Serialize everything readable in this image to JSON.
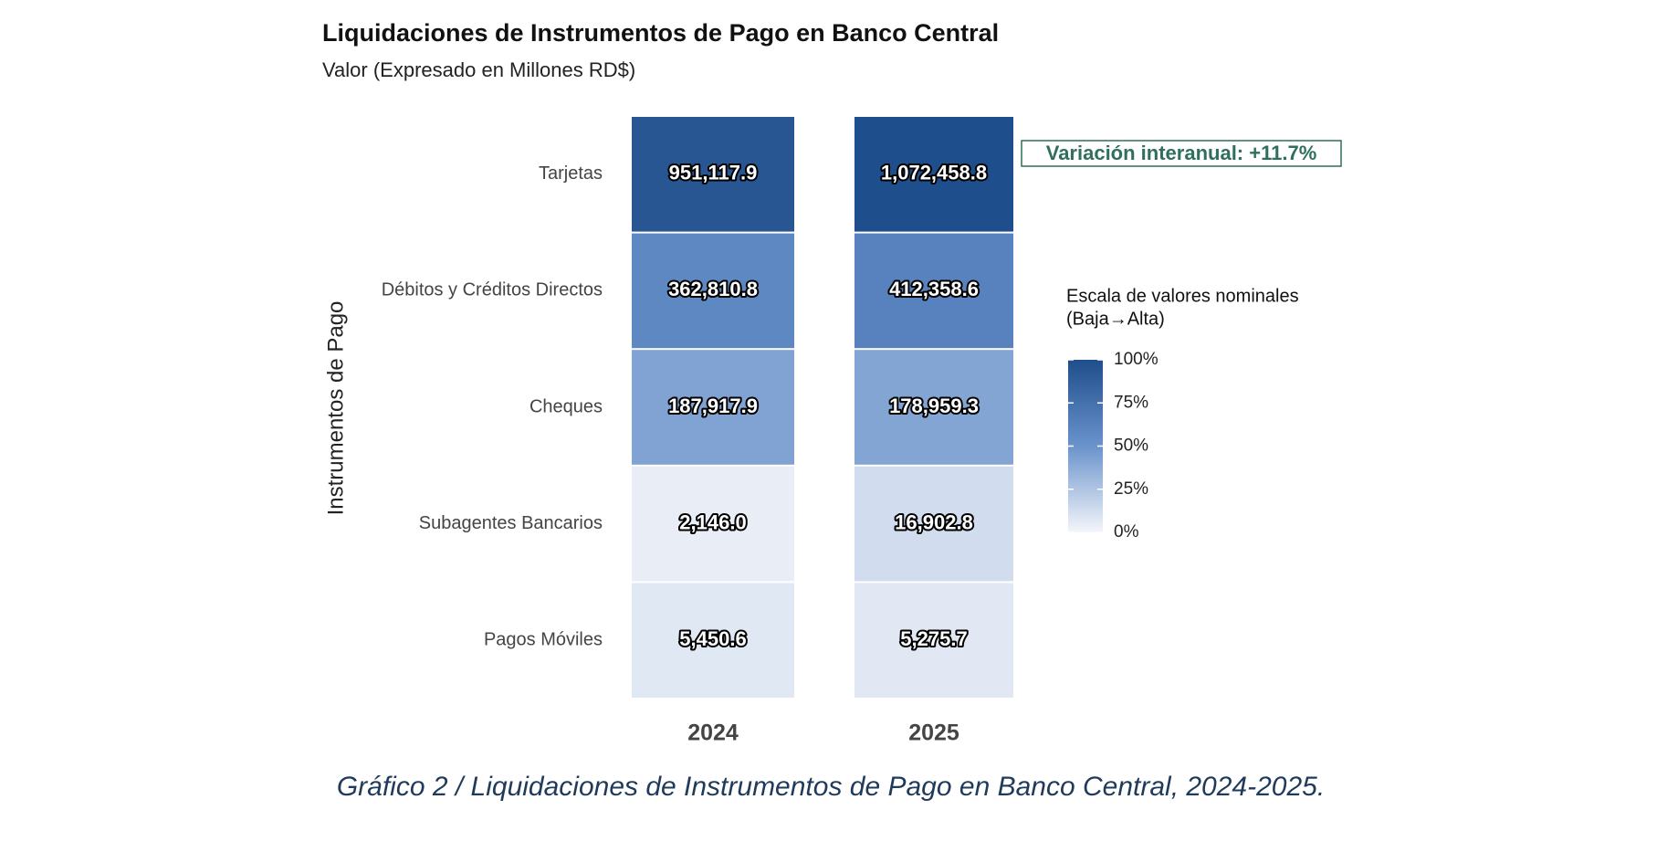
{
  "chart_data": {
    "type": "heatmap",
    "title": "Liquidaciones de Instrumentos de Pago en Banco Central",
    "subtitle": "Valor (Expresado en Millones RD$)",
    "y_label": "Instrumentos de Pago",
    "x": [
      "2024",
      "2025"
    ],
    "categories": [
      "Tarjetas",
      "Débitos y Créditos Directos",
      "Cheques",
      "Subagentes Bancarios",
      "Pagos Móviles"
    ],
    "series": [
      {
        "name": "2024",
        "values": [
          951117.9,
          362810.8,
          187917.9,
          2146.0,
          5450.6
        ],
        "value_labels": [
          "951,117.9",
          "362,810.8",
          "187,917.9",
          "2,146.0",
          "5,450.6"
        ]
      },
      {
        "name": "2025",
        "values": [
          1072458.8,
          412358.6,
          178959.3,
          16902.8,
          5275.7
        ],
        "value_labels": [
          "1,072,458.8",
          "412,358.6",
          "178,959.3",
          "16,902.8",
          "5,275.7"
        ]
      }
    ],
    "color_scale": "sqrt",
    "colorbar": {
      "title": [
        "Escala de valores nominales",
        "(Baja→Alta)"
      ],
      "lim": [
        0,
        100
      ],
      "ticks": [
        {
          "value": 0,
          "label": "0%"
        },
        {
          "value": 25,
          "label": "25%"
        },
        {
          "value": 50,
          "label": "50%"
        },
        {
          "value": 75,
          "label": "75%"
        },
        {
          "value": 100,
          "label": "100%"
        }
      ],
      "colors": [
        "#f4f6fa",
        "#6a93cc",
        "#1f4e8c"
      ]
    },
    "annotation": "Variación interanual: +11.7%",
    "caption": "Gráfico 2 / Liquidaciones de Instrumentos de Pago en Banco Central, 2024-2025."
  }
}
